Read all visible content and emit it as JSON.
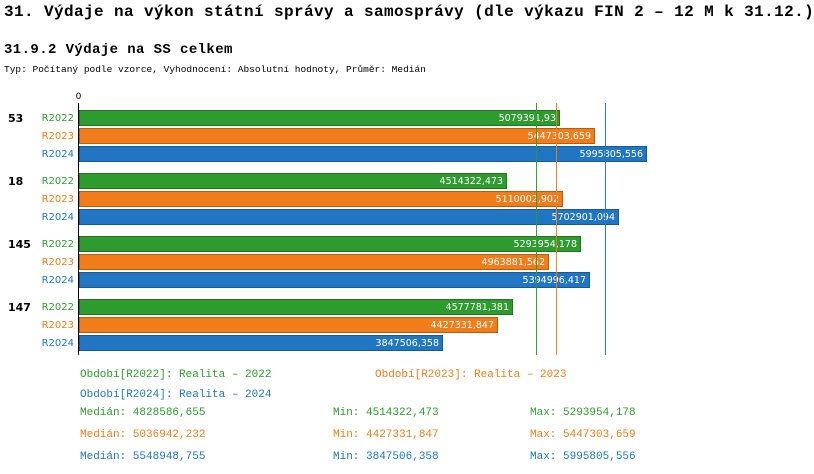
{
  "page": {
    "title": "31. Výdaje na výkon státní správy a samosprávy (dle výkazu FIN 2 – 12 M k 31.12.)",
    "subtitle": "31.9.2 Výdaje na SS celkem",
    "type_line": "Typ: Počítaný podle vzorce, Vyhodnocení: Absolutní hodnoty, Průměr: Medián"
  },
  "colors": {
    "r2022": "#2e9b2e",
    "r2023": "#f07c1a",
    "r2024": "#2176c4",
    "axis": "#000000"
  },
  "chart_data": {
    "type": "bar",
    "orientation": "horizontal",
    "title": "31.9.2 Výdaje na SS celkem",
    "x_axis": {
      "origin_label": "0",
      "min": 0,
      "max": 5995805.556
    },
    "categories": [
      "53",
      "18",
      "145",
      "147"
    ],
    "series": [
      {
        "name": "R2022",
        "color_key": "r2022",
        "values": [
          5079391.93,
          4514322.473,
          5293954.178,
          4577781.381
        ],
        "value_labels": [
          "5079391,93",
          "4514322,473",
          "5293954,178",
          "4577781,381"
        ],
        "median": 4828586.655,
        "min": 4514322.473,
        "max": 5293954.178
      },
      {
        "name": "R2023",
        "color_key": "r2023",
        "values": [
          5447303.659,
          5110002.902,
          4963881.562,
          4427331.847
        ],
        "value_labels": [
          "5447303,659",
          "5110002,902",
          "4963881,562",
          "4427331,847"
        ],
        "median": 5036942.232,
        "min": 4427331.847,
        "max": 5447303.659
      },
      {
        "name": "R2024",
        "color_key": "r2024",
        "values": [
          5995805.556,
          5702901.094,
          5394996.417,
          3847506.358
        ],
        "value_labels": [
          "5995805,556",
          "5702901,094",
          "5394996,417",
          "3847506,358"
        ],
        "median": 5548948.755,
        "min": 3847506.358,
        "max": 5995805.556
      }
    ],
    "median_lines": true,
    "grid": false,
    "legend_position": "bottom"
  },
  "legend": {
    "items": [
      {
        "label": "Období[R2022]: Realita – 2022",
        "color_key": "r2022"
      },
      {
        "label": "Období[R2024]: Realita – 2024",
        "color_key": "r2024"
      },
      {
        "label": "Období[R2023]: Realita – 2023",
        "color_key": "r2023"
      }
    ]
  },
  "stats": {
    "rows": [
      {
        "color_key": "r2022",
        "median": "Medián: 4828586,655",
        "min": "Min: 4514322,473",
        "max": "Max: 5293954,178"
      },
      {
        "color_key": "r2023",
        "median": "Medián: 5036942,232",
        "min": "Min: 4427331,847",
        "max": "Max: 5447303,659"
      },
      {
        "color_key": "r2024",
        "median": "Medián: 5548948,755",
        "min": "Min: 3847506,358",
        "max": "Max: 5995805,556"
      }
    ]
  }
}
